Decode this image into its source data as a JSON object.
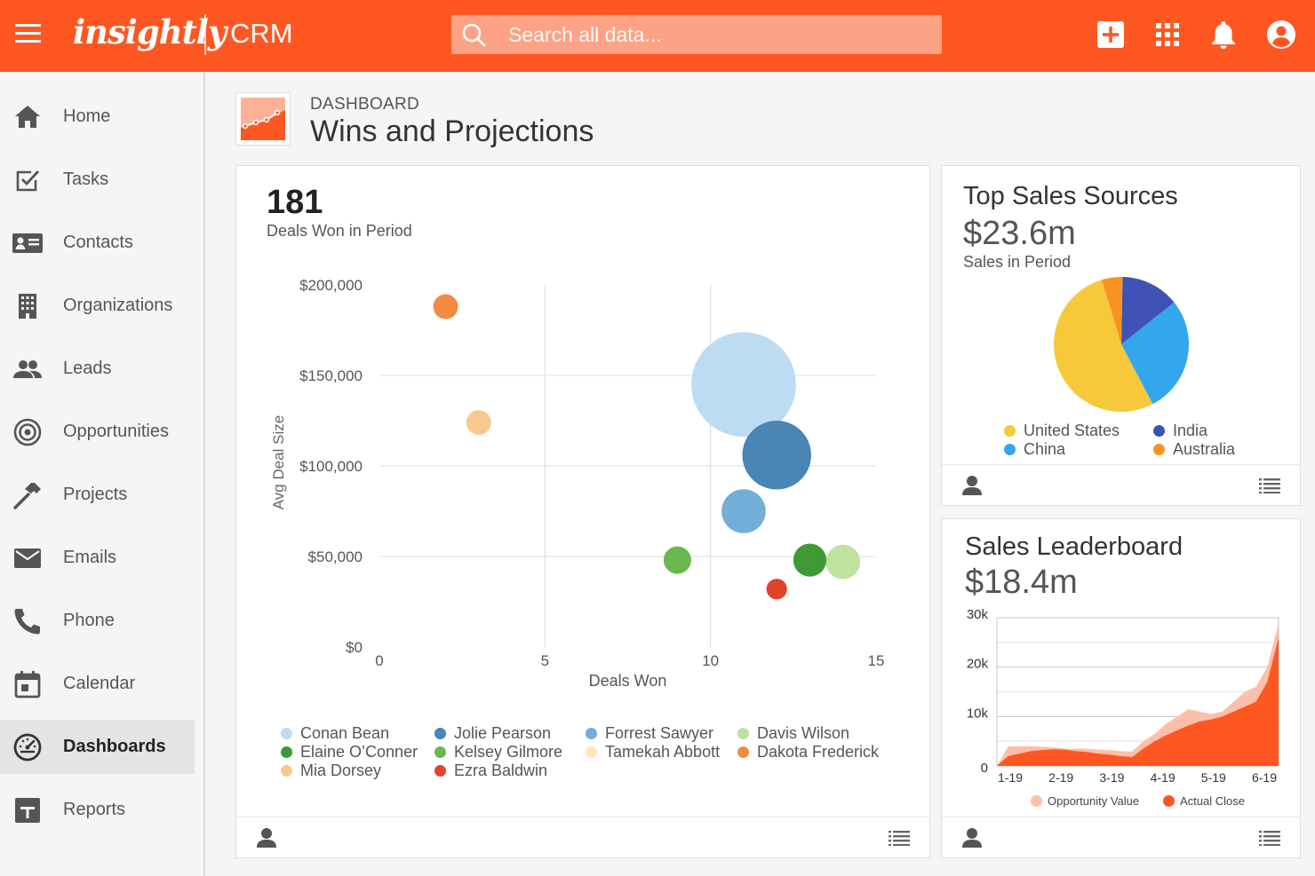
{
  "app": {
    "logo": "insightly",
    "module": "CRM"
  },
  "search": {
    "placeholder": "Search all data..."
  },
  "topbar_icons": [
    "add-icon",
    "apps-grid-icon",
    "bell-icon",
    "account-icon"
  ],
  "sidebar": {
    "items": [
      {
        "label": "Home",
        "icon": "home-icon"
      },
      {
        "label": "Tasks",
        "icon": "tasks-icon"
      },
      {
        "label": "Contacts",
        "icon": "contacts-icon"
      },
      {
        "label": "Organizations",
        "icon": "organizations-icon"
      },
      {
        "label": "Leads",
        "icon": "leads-icon"
      },
      {
        "label": "Opportunities",
        "icon": "opportunities-icon"
      },
      {
        "label": "Projects",
        "icon": "projects-icon"
      },
      {
        "label": "Emails",
        "icon": "emails-icon"
      },
      {
        "label": "Phone",
        "icon": "phone-icon"
      },
      {
        "label": "Calendar",
        "icon": "calendar-icon"
      },
      {
        "label": "Dashboards",
        "icon": "dashboards-icon",
        "active": true
      },
      {
        "label": "Reports",
        "icon": "reports-icon"
      }
    ]
  },
  "header": {
    "kicker": "DASHBOARD",
    "title": "Wins and Projections"
  },
  "colors": {
    "brand": "#fe5722",
    "active_nav": "#e4e4e4"
  },
  "deals_card": {
    "value": "181",
    "label": "Deals Won in Period",
    "chart_data": {
      "type": "scatter",
      "subtype": "bubble",
      "xlabel": "Deals Won",
      "ylabel": "Avg Deal Size",
      "xlim": [
        0,
        15
      ],
      "ylim": [
        0,
        200000
      ],
      "x_ticks": [
        {
          "value": 0,
          "label": "0"
        },
        {
          "value": 5,
          "label": "5"
        },
        {
          "value": 10,
          "label": "10"
        },
        {
          "value": 15,
          "label": "15"
        }
      ],
      "y_ticks": [
        {
          "value": 0,
          "label": "$0"
        },
        {
          "value": 50000,
          "label": "$50,000"
        },
        {
          "value": 100000,
          "label": "$100,000"
        },
        {
          "value": 150000,
          "label": "$150,000"
        },
        {
          "value": 200000,
          "label": "$200,000"
        }
      ],
      "grid": true,
      "legend_position": "bottom",
      "series": [
        {
          "name": "Conan Bean",
          "color": "#bcdcf4",
          "x": 11,
          "y": 145000,
          "size": 3.8
        },
        {
          "name": "Jolie Pearson",
          "color": "#4a85b3",
          "x": 12,
          "y": 106000,
          "size": 2.5
        },
        {
          "name": "Forrest Sawyer",
          "color": "#73aedb",
          "x": 11,
          "y": 75000,
          "size": 1.6
        },
        {
          "name": "Davis Wilson",
          "color": "#bfe29c",
          "x": 14,
          "y": 47000,
          "size": 1.25
        },
        {
          "name": "Elaine O'Conner",
          "color": "#3f9a35",
          "x": 13,
          "y": 48000,
          "size": 1.2
        },
        {
          "name": "Kelsey Gilmore",
          "color": "#6ab84e",
          "x": 9,
          "y": 48000,
          "size": 1.0
        },
        {
          "name": "Tamekah Abbott",
          "color": "#faeab8",
          "x": 0,
          "y": 0,
          "size": 0
        },
        {
          "name": "Dakota Frederick",
          "color": "#f28a3f",
          "x": 2,
          "y": 188000,
          "size": 0.9
        },
        {
          "name": "Mia Dorsey",
          "color": "#f8c98e",
          "x": 3,
          "y": 124000,
          "size": 0.9
        },
        {
          "name": "Ezra Baldwin",
          "color": "#e0432b",
          "x": 12,
          "y": 32000,
          "size": 0.75
        }
      ]
    },
    "legend": [
      {
        "name": "Conan Bean",
        "color": "#bcdcf4"
      },
      {
        "name": "Jolie Pearson",
        "color": "#4a85b3"
      },
      {
        "name": "Forrest Sawyer",
        "color": "#73aedb"
      },
      {
        "name": "Davis Wilson",
        "color": "#bfe29c"
      },
      {
        "name": "Elaine O’Conner",
        "color": "#3f9a35"
      },
      {
        "name": "Kelsey Gilmore",
        "color": "#6ab84e"
      },
      {
        "name": "Tamekah Abbott",
        "color": "#faeab8"
      },
      {
        "name": "Dakota Frederick",
        "color": "#f28a3f"
      },
      {
        "name": "Mia Dorsey",
        "color": "#f8c98e"
      },
      {
        "name": "Ezra Baldwin",
        "color": "#e0432b"
      }
    ]
  },
  "sources_card": {
    "title": "Top Sales Sources",
    "value": "$23.6m",
    "label": "Sales in Period",
    "chart_data": {
      "type": "pie",
      "legend_position": "bottom",
      "slices": [
        {
          "name": "United States",
          "value": 53,
          "color": "#f7c93a"
        },
        {
          "name": "India",
          "value": 14,
          "color": "#3f51b5"
        },
        {
          "name": "China",
          "value": 28,
          "color": "#33a7ee"
        },
        {
          "name": "Australia",
          "value": 5,
          "color": "#f79421"
        }
      ],
      "draw_order": [
        "India",
        "China",
        "United States",
        "Australia"
      ]
    }
  },
  "leaderboard_card": {
    "title": "Sales Leaderboard",
    "value": "$18.4m",
    "chart_data": {
      "type": "area",
      "categories": [
        "1-19",
        "2-19",
        "3-19",
        "4-19",
        "5-19",
        "6-19"
      ],
      "x": [
        0,
        1,
        2,
        3,
        4,
        5,
        6,
        7,
        8,
        9,
        10,
        11,
        12,
        13,
        14,
        15,
        16,
        17,
        18,
        19,
        20,
        21,
        22,
        23,
        24,
        25
      ],
      "ylim": [
        0,
        30000
      ],
      "y_ticks": [
        {
          "value": 0,
          "label": "0"
        },
        {
          "value": 10000,
          "label": "10k"
        },
        {
          "value": 20000,
          "label": "20k"
        },
        {
          "value": 30000,
          "label": "30k"
        }
      ],
      "grid": true,
      "legend_position": "bottom",
      "series": [
        {
          "name": "Opportunity Value",
          "color": "#fcc0aa",
          "values": [
            0,
            4000,
            4000,
            4000,
            3900,
            3800,
            3500,
            3500,
            3500,
            3300,
            3200,
            3000,
            2900,
            5000,
            6500,
            8500,
            10000,
            11500,
            11000,
            10500,
            11000,
            13000,
            15000,
            16000,
            20000,
            29000
          ]
        },
        {
          "name": "Actual Close",
          "color": "#fe5722",
          "values": [
            0,
            2000,
            2500,
            3000,
            3200,
            3400,
            3300,
            3000,
            2800,
            2500,
            2300,
            2000,
            1800,
            3500,
            5000,
            6200,
            7200,
            8200,
            9000,
            9400,
            10000,
            11000,
            12000,
            13000,
            17000,
            26000
          ]
        }
      ]
    }
  },
  "card_footer_icons": {
    "person": "person-icon",
    "list": "list-icon"
  }
}
